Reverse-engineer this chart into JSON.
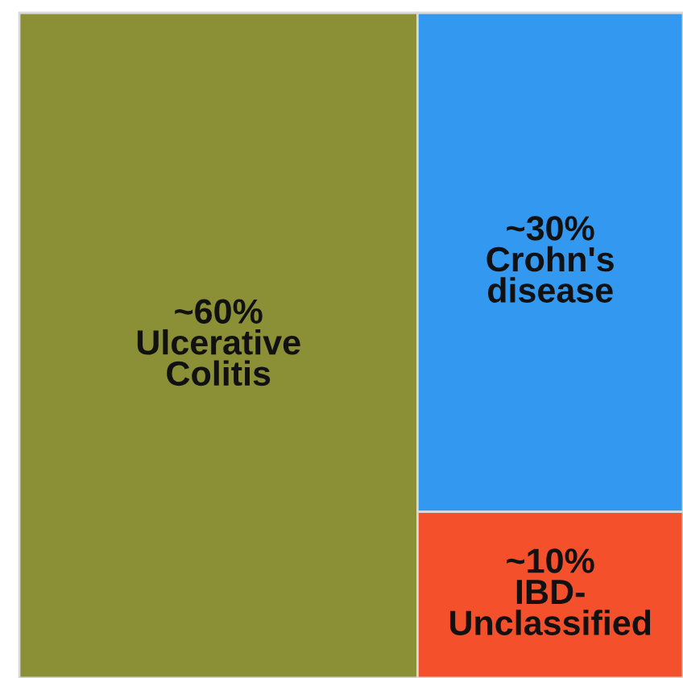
{
  "chart_data": {
    "type": "other",
    "categories": [
      "Ulcerative\nColitis",
      "Crohn's\ndisease",
      "IBD-\nUnclassified"
    ],
    "values": [
      60,
      30,
      10
    ],
    "value_labels": [
      "~60%",
      "~30%",
      "~10%"
    ],
    "colors": [
      "#8b8f35",
      "#3399f0",
      "#f5502c"
    ]
  }
}
